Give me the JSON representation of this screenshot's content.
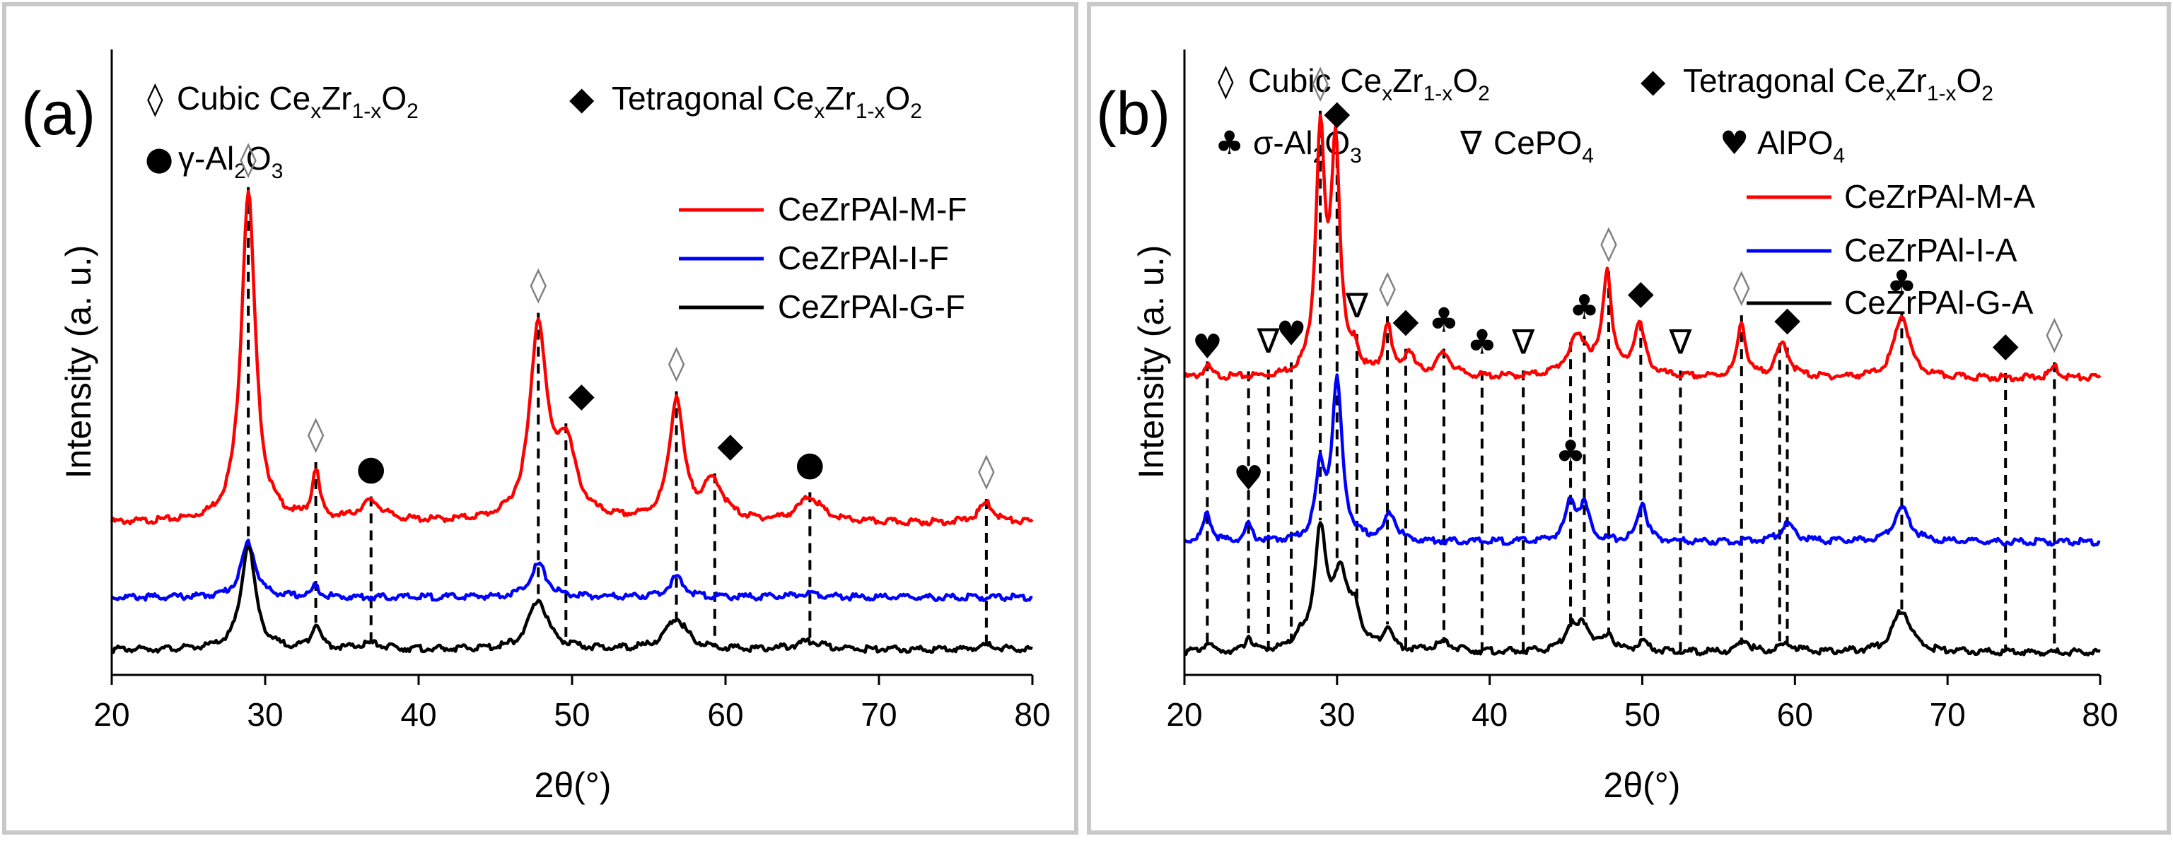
{
  "chart_data": [
    {
      "type": "line",
      "panel_label": "(a)",
      "xlabel": "2θ(°)",
      "ylabel": "Intensity (a. u.)",
      "xlim": [
        20,
        80
      ],
      "xticks": [
        20,
        30,
        40,
        50,
        60,
        70,
        80
      ],
      "phase_legend": [
        {
          "symbol": "◊",
          "text": "Cubic CexZr1-xO2"
        },
        {
          "symbol": "◆",
          "text": "Tetragonal CexZr1-xO2"
        },
        {
          "symbol": "●",
          "text": "γ-Al2O3"
        }
      ],
      "series": [
        {
          "name": "CeZrPAl-M-F",
          "color": "#ff0000",
          "baseline": 0.25,
          "peaks": [
            [
              28.9,
              0.6,
              0.55
            ],
            [
              33.3,
              0.09,
              0.28
            ],
            [
              36.9,
              0.035,
              0.9
            ],
            [
              47.8,
              0.35,
              0.65
            ],
            [
              49.6,
              0.13,
              0.8
            ],
            [
              56.8,
              0.22,
              0.55
            ],
            [
              59.2,
              0.07,
              0.8
            ],
            [
              65.5,
              0.045,
              0.9
            ],
            [
              77.0,
              0.035,
              0.6
            ]
          ]
        },
        {
          "name": "CeZrPAl-I-F",
          "color": "#0000ff",
          "baseline": 0.115,
          "peaks": [
            [
              28.9,
              0.1,
              0.55
            ],
            [
              33.3,
              0.02,
              0.3
            ],
            [
              47.8,
              0.06,
              0.65
            ],
            [
              56.8,
              0.035,
              0.6
            ],
            [
              65.5,
              0.008,
              0.9
            ]
          ]
        },
        {
          "name": "CeZrPAl-G-F",
          "color": "#000000",
          "baseline": 0.02,
          "peaks": [
            [
              28.9,
              0.19,
              0.55
            ],
            [
              33.3,
              0.045,
              0.35
            ],
            [
              36.9,
              0.01,
              0.9
            ],
            [
              47.8,
              0.09,
              0.75
            ],
            [
              56.8,
              0.055,
              0.85
            ],
            [
              65.5,
              0.015,
              1.0
            ],
            [
              77.0,
              0.008,
              0.8
            ]
          ]
        }
      ],
      "peak_markers": [
        {
          "x": 28.9,
          "symbol": "◊"
        },
        {
          "x": 33.3,
          "symbol": "◊"
        },
        {
          "x": 36.9,
          "symbol": "●"
        },
        {
          "x": 47.8,
          "symbol": "◊"
        },
        {
          "x": 49.6,
          "symbol": "◆"
        },
        {
          "x": 56.8,
          "symbol": "◊"
        },
        {
          "x": 59.3,
          "symbol": "◆"
        },
        {
          "x": 65.5,
          "symbol": "●"
        },
        {
          "x": 77.0,
          "symbol": "◊"
        }
      ]
    },
    {
      "type": "line",
      "panel_label": "(b)",
      "xlabel": "2θ(°)",
      "ylabel": "Intensity (a. u.)",
      "xlim": [
        20,
        80
      ],
      "xticks": [
        20,
        30,
        40,
        50,
        60,
        70,
        80
      ],
      "phase_legend": [
        {
          "symbol": "◊",
          "text": "Cubic CexZr1-xO2"
        },
        {
          "symbol": "◆",
          "text": "Tetragonal CexZr1-xO2"
        },
        {
          "symbol": "♣",
          "text": "σ-Al2O3"
        },
        {
          "symbol": "∇",
          "text": "CePO4"
        },
        {
          "symbol": "♥",
          "text": "AlPO4"
        }
      ],
      "series": [
        {
          "name": "CeZrPAl-M-A",
          "color": "#ff0000",
          "baseline": 0.5,
          "peaks": [
            [
              21.5,
              0.02,
              0.3
            ],
            [
              28.9,
              0.42,
              0.35
            ],
            [
              29.9,
              0.4,
              0.35
            ],
            [
              31.2,
              0.04,
              0.25
            ],
            [
              33.3,
              0.09,
              0.3
            ],
            [
              34.7,
              0.04,
              0.4
            ],
            [
              37.0,
              0.04,
              0.6
            ],
            [
              45.8,
              0.07,
              0.8
            ],
            [
              47.7,
              0.18,
              0.35
            ],
            [
              49.8,
              0.09,
              0.45
            ],
            [
              56.5,
              0.1,
              0.3
            ],
            [
              59.2,
              0.06,
              0.5
            ],
            [
              67.0,
              0.11,
              0.6
            ],
            [
              77.0,
              0.02,
              0.3
            ]
          ]
        },
        {
          "name": "CeZrPAl-I-A",
          "color": "#0000ff",
          "baseline": 0.21,
          "peaks": [
            [
              21.5,
              0.05,
              0.3
            ],
            [
              24.2,
              0.03,
              0.25
            ],
            [
              28.9,
              0.12,
              0.35
            ],
            [
              30.0,
              0.28,
              0.4
            ],
            [
              33.5,
              0.05,
              0.45
            ],
            [
              45.3,
              0.07,
              0.4
            ],
            [
              46.2,
              0.06,
              0.4
            ],
            [
              50.0,
              0.07,
              0.35
            ],
            [
              59.5,
              0.03,
              0.6
            ],
            [
              67.0,
              0.06,
              0.65
            ]
          ]
        },
        {
          "name": "CeZrPAl-G-A",
          "color": "#000000",
          "baseline": 0.015,
          "peaks": [
            [
              21.5,
              0.015,
              0.3
            ],
            [
              24.2,
              0.03,
              0.2
            ],
            [
              27.5,
              0.02,
              0.3
            ],
            [
              28.9,
              0.21,
              0.45
            ],
            [
              30.2,
              0.13,
              0.55
            ],
            [
              31.2,
              0.06,
              0.45
            ],
            [
              33.3,
              0.04,
              0.35
            ],
            [
              37.0,
              0.015,
              0.7
            ],
            [
              45.3,
              0.04,
              0.5
            ],
            [
              46.2,
              0.045,
              0.5
            ],
            [
              47.8,
              0.03,
              0.35
            ],
            [
              50.0,
              0.015,
              0.5
            ],
            [
              56.7,
              0.02,
              0.4
            ],
            [
              59.5,
              0.015,
              0.6
            ],
            [
              67.0,
              0.075,
              0.7
            ]
          ]
        }
      ],
      "peak_markers": [
        {
          "x": 21.5,
          "symbol": "♥"
        },
        {
          "x": 24.2,
          "symbol": "♥"
        },
        {
          "x": 25.5,
          "symbol": "∇"
        },
        {
          "x": 27.0,
          "symbol": "♥"
        },
        {
          "x": 28.9,
          "symbol": "◊"
        },
        {
          "x": 30.0,
          "symbol": "◆"
        },
        {
          "x": 31.3,
          "symbol": "∇"
        },
        {
          "x": 33.3,
          "symbol": "◊"
        },
        {
          "x": 34.5,
          "symbol": "◆"
        },
        {
          "x": 37.0,
          "symbol": "♣"
        },
        {
          "x": 39.5,
          "symbol": "♣"
        },
        {
          "x": 42.2,
          "symbol": "∇"
        },
        {
          "x": 45.3,
          "symbol": "♣"
        },
        {
          "x": 46.2,
          "symbol": "♣"
        },
        {
          "x": 47.8,
          "symbol": "◊"
        },
        {
          "x": 49.9,
          "symbol": "◆"
        },
        {
          "x": 52.5,
          "symbol": "∇"
        },
        {
          "x": 56.5,
          "symbol": "◊"
        },
        {
          "x": 59.0,
          "symbol": "◆"
        },
        {
          "x": 59.5,
          "symbol": "◆"
        },
        {
          "x": 67.0,
          "symbol": "♣"
        },
        {
          "x": 73.8,
          "symbol": "◆"
        },
        {
          "x": 77.0,
          "symbol": "◊"
        }
      ]
    }
  ]
}
